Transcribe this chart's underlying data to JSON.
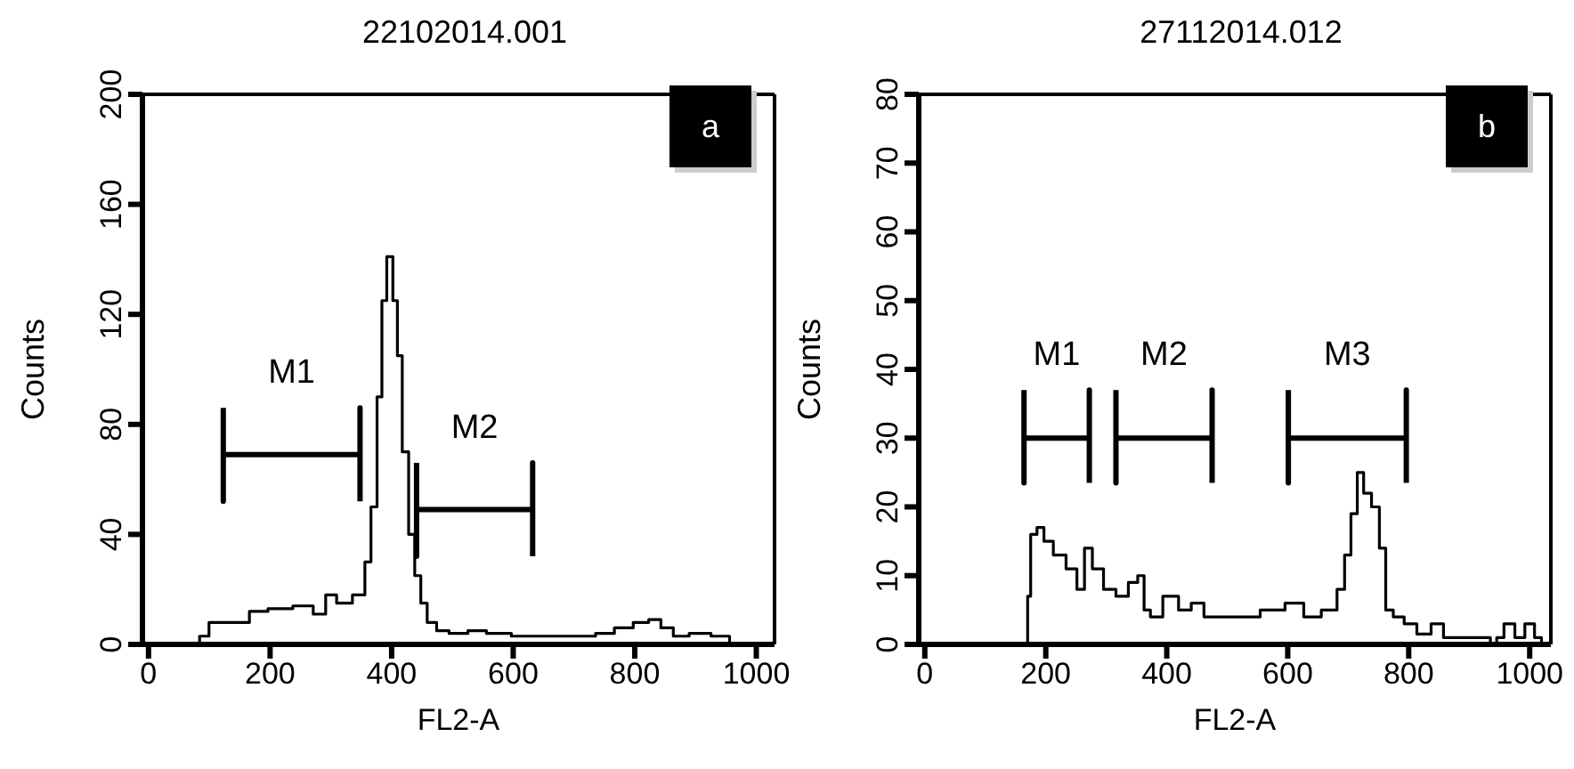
{
  "chart_data": [
    {
      "type": "step",
      "title": "22102014.001",
      "xlabel": "FL2-A",
      "ylabel": "Counts",
      "xlim": [
        -10,
        1030
      ],
      "ylim": [
        0,
        200
      ],
      "xticks": [
        0,
        200,
        400,
        600,
        800,
        1000
      ],
      "yticks": [
        0,
        40,
        80,
        120,
        160,
        200
      ],
      "series": [
        {
          "color": "#000000",
          "x": [
            0,
            79,
            89,
            110,
            156,
            176,
            217,
            258,
            284,
            299,
            320,
            351,
            361,
            371,
            381,
            387,
            397,
            407,
            412,
            423,
            433,
            443,
            453,
            464,
            484,
            505,
            546,
            566,
            628,
            720,
            751,
            782,
            813,
            833,
            853,
            874,
            905,
            946,
            966,
            1000
          ],
          "values": [
            0,
            0,
            3,
            8,
            8,
            12,
            13,
            14,
            11,
            18,
            15,
            18,
            30,
            50,
            90,
            125,
            141,
            125,
            105,
            70,
            40,
            25,
            15,
            8,
            5,
            4,
            5,
            4,
            3,
            3,
            4,
            6,
            8,
            9,
            6,
            3,
            4,
            3,
            0,
            0
          ]
        },
        {
          "type": "line",
          "name": "M1",
          "color": "#000000",
          "x": [
            123,
            123,
            123,
            348,
            348,
            348
          ],
          "values": [
            86,
            52,
            69,
            69,
            86,
            52
          ]
        },
        {
          "type": "line",
          "name": "M2",
          "color": "#000000",
          "x": [
            441,
            441,
            441,
            632,
            632,
            632
          ],
          "values": [
            66,
            32,
            49,
            49,
            66,
            32
          ]
        }
      ],
      "annotations": [
        "a"
      ]
    },
    {
      "type": "step",
      "title": "27112014.012",
      "xlabel": "FL2-A",
      "ylabel": "Counts",
      "xlim": [
        -10,
        1035
      ],
      "ylim": [
        0,
        80
      ],
      "xticks": [
        0,
        200,
        400,
        600,
        800,
        1000
      ],
      "yticks": [
        0,
        10,
        20,
        30,
        40,
        50,
        60,
        70,
        80
      ],
      "series": [
        {
          "color": "#000000",
          "x": [
            0,
            169,
            171,
            179,
            192,
            202,
            223,
            244,
            259,
            269,
            285,
            306,
            326,
            347,
            357,
            368,
            378,
            409,
            430,
            451,
            472,
            492,
            534,
            575,
            616,
            637,
            674,
            689,
            699,
            710,
            720,
            731,
            746,
            757,
            767,
            782,
            803,
            824,
            850,
            865,
            896,
            927,
            943,
            948,
            967,
            984,
            1000,
            1016,
            1023
          ],
          "values": [
            0,
            0,
            7,
            16,
            17,
            15,
            13,
            11,
            8,
            14,
            11,
            8,
            7,
            9,
            10,
            5,
            4,
            7,
            5,
            6,
            4,
            4,
            4,
            5,
            6,
            4,
            5,
            8,
            13,
            19,
            25,
            22,
            20,
            14,
            5,
            4,
            3,
            1.5,
            3,
            1,
            1,
            1,
            0,
            1,
            3,
            1,
            3,
            1,
            0
          ]
        },
        {
          "type": "line",
          "name": "M1",
          "color": "#000000",
          "x": [
            164,
            164,
            164,
            272,
            272,
            272
          ],
          "values": [
            37,
            23.5,
            30,
            30,
            37,
            23.5
          ]
        },
        {
          "type": "line",
          "name": "M2",
          "color": "#000000",
          "x": [
            316,
            316,
            316,
            475,
            475,
            475
          ],
          "values": [
            37,
            23.5,
            30,
            30,
            37,
            23.5
          ]
        },
        {
          "type": "line",
          "name": "M3",
          "color": "#000000",
          "x": [
            601,
            601,
            601,
            796,
            796,
            796
          ],
          "values": [
            37,
            23.5,
            30,
            30,
            37,
            23.5
          ]
        }
      ],
      "annotations": [
        "b"
      ]
    }
  ]
}
